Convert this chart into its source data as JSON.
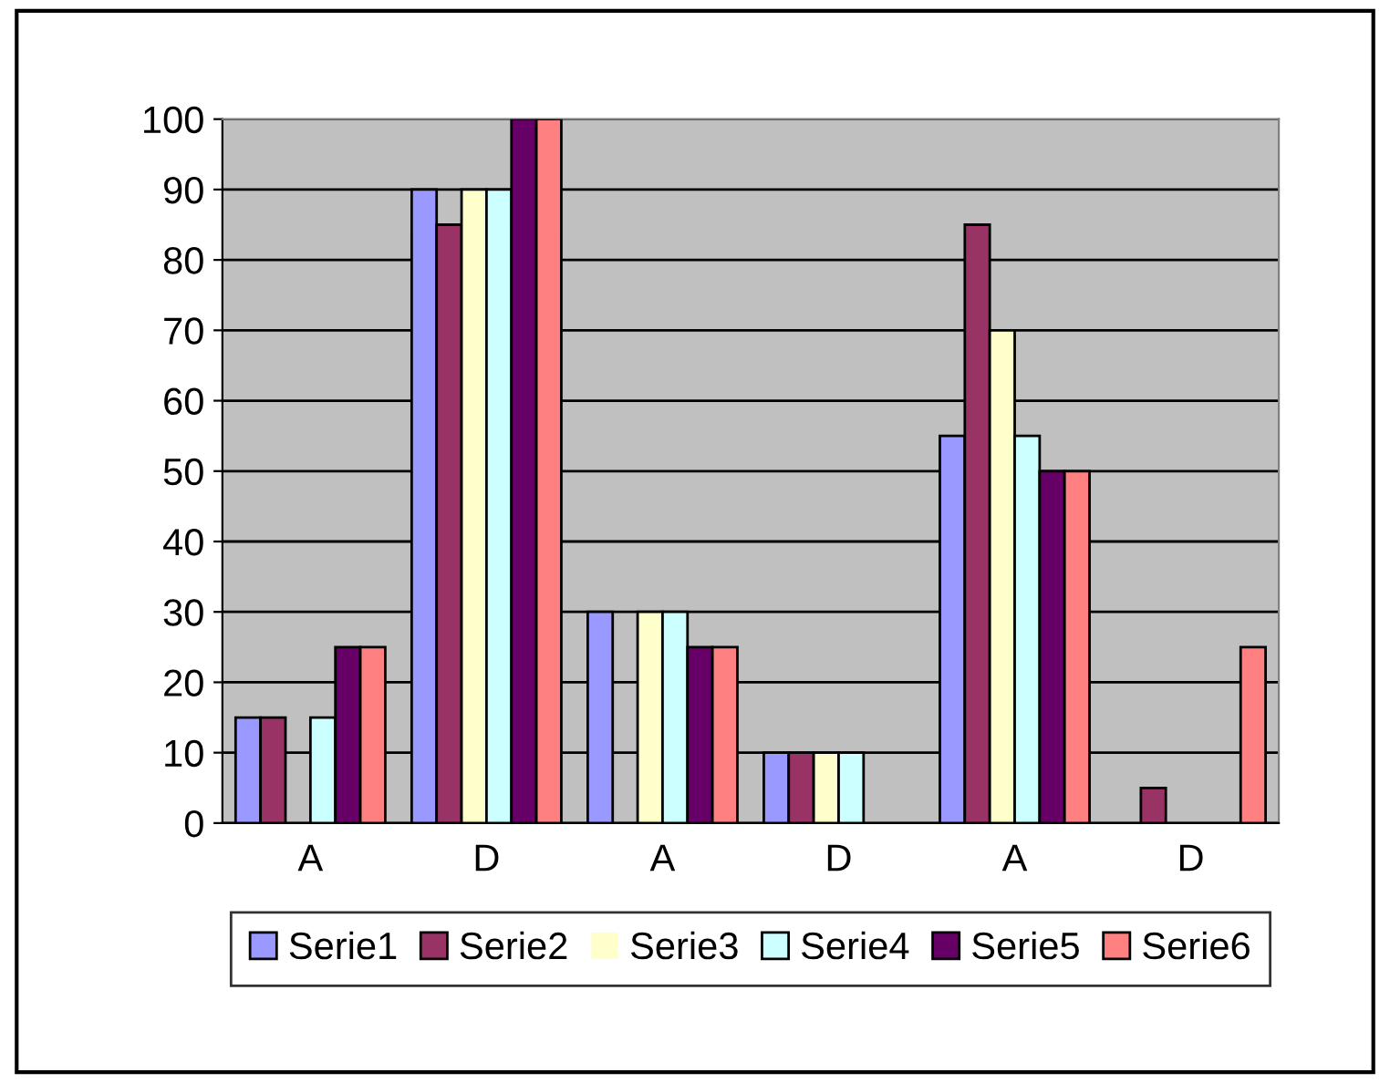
{
  "chart_data": {
    "type": "bar",
    "categories": [
      "A",
      "D",
      "A",
      "D",
      "A",
      "D"
    ],
    "series": [
      {
        "name": "Serie1",
        "color": "#9999ff",
        "values": [
          15,
          90,
          30,
          10,
          55,
          0
        ]
      },
      {
        "name": "Serie2",
        "color": "#993366",
        "values": [
          15,
          85,
          0,
          10,
          85,
          5
        ]
      },
      {
        "name": "Serie3",
        "color": "#ffffcc",
        "values": [
          0,
          90,
          30,
          10,
          70,
          0
        ]
      },
      {
        "name": "Serie4",
        "color": "#ccffff",
        "values": [
          15,
          90,
          30,
          10,
          55,
          0
        ]
      },
      {
        "name": "Serie5",
        "color": "#660066",
        "values": [
          25,
          100,
          25,
          0,
          50,
          0
        ]
      },
      {
        "name": "Serie6",
        "color": "#ff8080",
        "values": [
          25,
          100,
          25,
          0,
          50,
          25
        ]
      }
    ],
    "ylim": [
      0,
      100
    ],
    "yticks": [
      0,
      10,
      20,
      30,
      40,
      50,
      60,
      70,
      80,
      90,
      100
    ],
    "grid": "y",
    "legend": "bottom"
  }
}
